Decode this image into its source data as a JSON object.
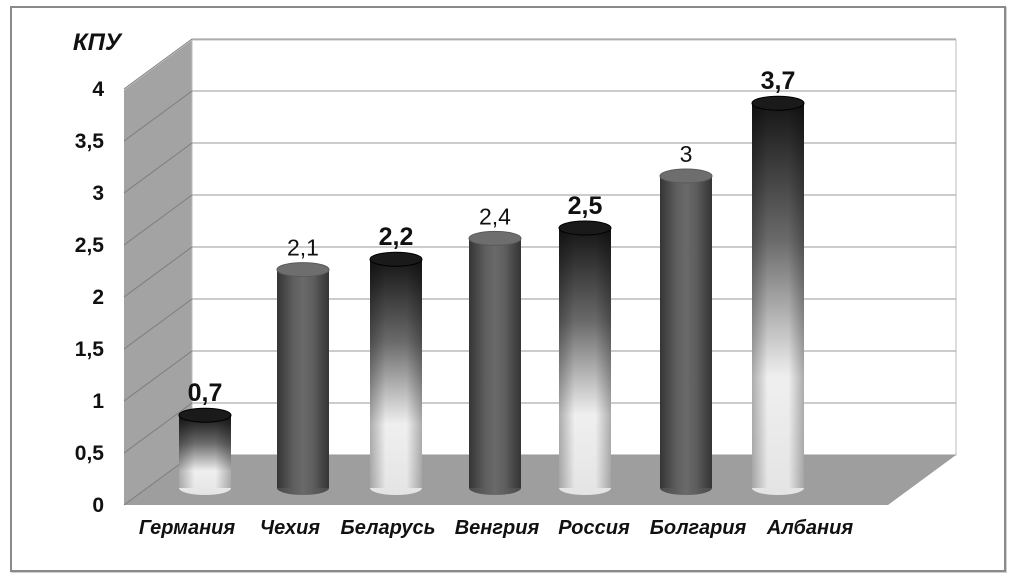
{
  "chart_data": {
    "type": "bar",
    "title": "КПУ",
    "categories": [
      "Германия",
      "Чехия",
      "Беларусь",
      "Венгрия",
      "Россия",
      "Болгария",
      "Албания"
    ],
    "values": [
      0.7,
      2.1,
      2.2,
      2.4,
      2.5,
      3,
      3.7
    ],
    "value_labels": [
      "0,7",
      "2,1",
      "2,2",
      "2,4",
      "2,5",
      "3",
      "3,7"
    ],
    "ylim": [
      0,
      4
    ],
    "yticks": [
      "0",
      "0,5",
      "1",
      "1,5",
      "2",
      "2,5",
      "3",
      "3,5",
      "4"
    ],
    "grid": true,
    "legend": "none",
    "colors": {
      "solid_bar": "#5a5a5a",
      "gradient_top": "#111111",
      "gradient_bottom": "#f2f2f2",
      "walls": "#a0a0a0",
      "floor": "#9e9e9e"
    }
  }
}
